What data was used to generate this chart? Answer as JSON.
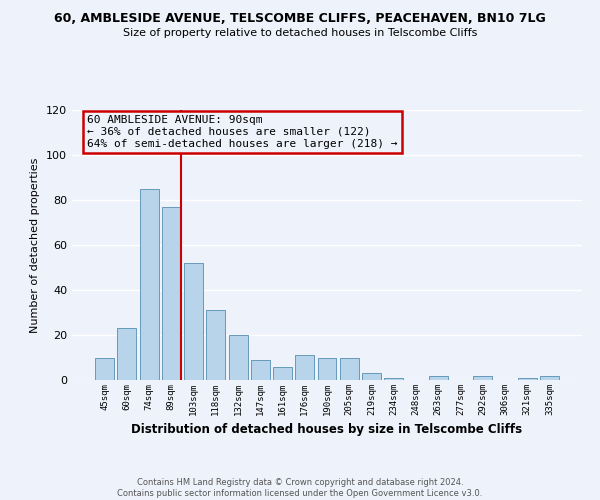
{
  "title": "60, AMBLESIDE AVENUE, TELSCOMBE CLIFFS, PEACEHAVEN, BN10 7LG",
  "subtitle": "Size of property relative to detached houses in Telscombe Cliffs",
  "xlabel": "Distribution of detached houses by size in Telscombe Cliffs",
  "ylabel": "Number of detached properties",
  "bin_labels": [
    "45sqm",
    "60sqm",
    "74sqm",
    "89sqm",
    "103sqm",
    "118sqm",
    "132sqm",
    "147sqm",
    "161sqm",
    "176sqm",
    "190sqm",
    "205sqm",
    "219sqm",
    "234sqm",
    "248sqm",
    "263sqm",
    "277sqm",
    "292sqm",
    "306sqm",
    "321sqm",
    "335sqm"
  ],
  "values": [
    10,
    23,
    85,
    77,
    52,
    31,
    20,
    9,
    6,
    11,
    10,
    10,
    3,
    1,
    0,
    2,
    0,
    2,
    0,
    1,
    2
  ],
  "bar_color": "#b8d4ea",
  "bar_edge_color": "#6699bb",
  "annotation_line1": "60 AMBLESIDE AVENUE: 90sqm",
  "annotation_line2": "← 36% of detached houses are smaller (122)",
  "annotation_line3": "64% of semi-detached houses are larger (218) →",
  "annotation_box_color": "#cc0000",
  "ylim": [
    0,
    120
  ],
  "yticks": [
    0,
    20,
    40,
    60,
    80,
    100,
    120
  ],
  "footer_line1": "Contains HM Land Registry data © Crown copyright and database right 2024.",
  "footer_line2": "Contains public sector information licensed under the Open Government Licence v3.0.",
  "bg_color": "#eef2fa",
  "grid_color": "#ffffff"
}
